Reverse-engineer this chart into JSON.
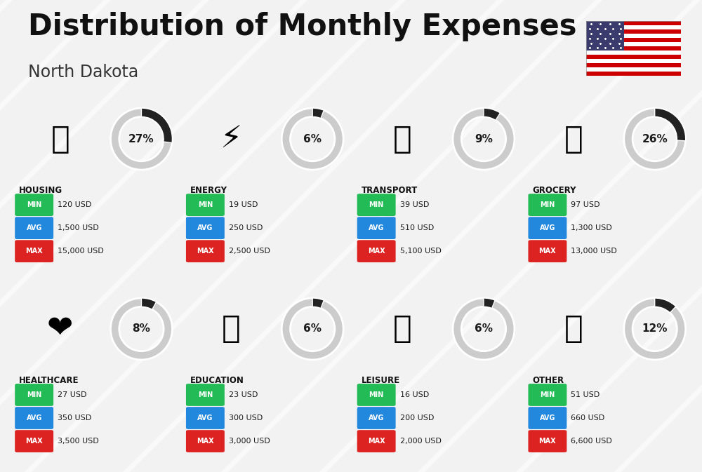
{
  "title": "Distribution of Monthly Expenses",
  "subtitle": "North Dakota",
  "background_color": "#f2f2f2",
  "categories": [
    {
      "name": "HOUSING",
      "percent": 27,
      "emoji": "🏙",
      "min_val": "120 USD",
      "avg_val": "1,500 USD",
      "max_val": "15,000 USD",
      "row": 0,
      "col": 0
    },
    {
      "name": "ENERGY",
      "percent": 6,
      "emoji": "⚡",
      "min_val": "19 USD",
      "avg_val": "250 USD",
      "max_val": "2,500 USD",
      "row": 0,
      "col": 1
    },
    {
      "name": "TRANSPORT",
      "percent": 9,
      "emoji": "🚌",
      "min_val": "39 USD",
      "avg_val": "510 USD",
      "max_val": "5,100 USD",
      "row": 0,
      "col": 2
    },
    {
      "name": "GROCERY",
      "percent": 26,
      "emoji": "🛒",
      "min_val": "97 USD",
      "avg_val": "1,300 USD",
      "max_val": "13,000 USD",
      "row": 0,
      "col": 3
    },
    {
      "name": "HEALTHCARE",
      "percent": 8,
      "emoji": "❤️",
      "min_val": "27 USD",
      "avg_val": "350 USD",
      "max_val": "3,500 USD",
      "row": 1,
      "col": 0
    },
    {
      "name": "EDUCATION",
      "percent": 6,
      "emoji": "🎓",
      "min_val": "23 USD",
      "avg_val": "300 USD",
      "max_val": "3,000 USD",
      "row": 1,
      "col": 1
    },
    {
      "name": "LEISURE",
      "percent": 6,
      "emoji": "🛍️",
      "min_val": "16 USD",
      "avg_val": "200 USD",
      "max_val": "2,000 USD",
      "row": 1,
      "col": 2
    },
    {
      "name": "OTHER",
      "percent": 12,
      "emoji": "💰",
      "min_val": "51 USD",
      "avg_val": "660 USD",
      "max_val": "6,600 USD",
      "row": 1,
      "col": 3
    }
  ],
  "min_color": "#22bb55",
  "avg_color": "#2288dd",
  "max_color": "#dd2222",
  "donut_bg_color": "#cccccc",
  "donut_fill_color": "#222222",
  "title_fontsize": 30,
  "subtitle_fontsize": 17,
  "flag_stripes": [
    "#CC0000",
    "#ffffff",
    "#CC0000",
    "#ffffff",
    "#CC0000",
    "#ffffff",
    "#CC0000",
    "#CC0000",
    "#ffffff",
    "#CC0000",
    "#ffffff",
    "#CC0000",
    "#ffffff"
  ],
  "flag_canton_color": "#3C3B6E"
}
